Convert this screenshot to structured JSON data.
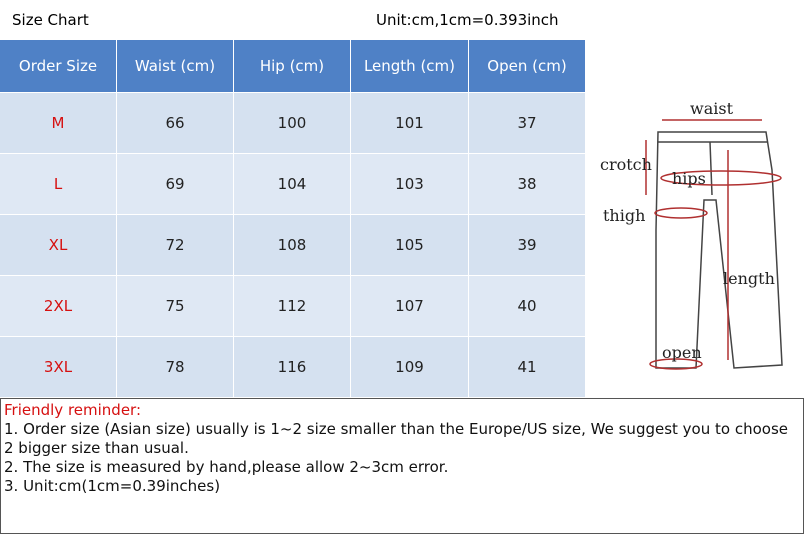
{
  "header": {
    "title": "Size Chart",
    "unit": "Unit:cm,1cm=0.393inch"
  },
  "table": {
    "columns": [
      "Order Size",
      "Waist (cm)",
      "Hip (cm)",
      "Length (cm)",
      "Open (cm)"
    ],
    "rows": [
      [
        "M",
        "66",
        "100",
        "101",
        "37"
      ],
      [
        "L",
        "69",
        "104",
        "103",
        "38"
      ],
      [
        "XL",
        "72",
        "108",
        "105",
        "39"
      ],
      [
        "2XL",
        "75",
        "112",
        "107",
        "40"
      ],
      [
        "3XL",
        "78",
        "116",
        "109",
        "41"
      ]
    ]
  },
  "diagram": {
    "labels": [
      "waist",
      "crotch",
      "hips",
      "thigh",
      "length",
      "open"
    ]
  },
  "reminder": {
    "title": "Friendly reminder:",
    "lines": [
      "1. Order size (Asian size) usually is 1~2 size smaller than the Europe/US size, We suggest you to choose 2 bigger size than usual.",
      "2. The size is measured by hand,please allow 2~3cm error.",
      "3. Unit:cm(1cm=0.39inches)"
    ]
  }
}
